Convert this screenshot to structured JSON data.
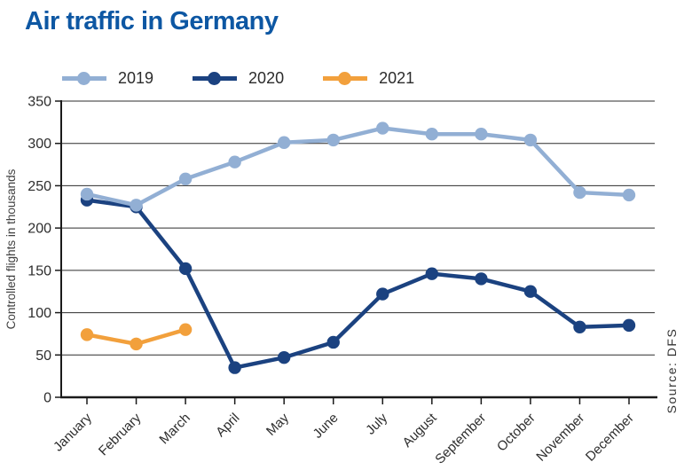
{
  "title": "Air traffic in Germany",
  "source_label": "Source: DFS",
  "colors": {
    "title": "#0D57A3",
    "axis": "#1a1a1a",
    "grid": "#2d2d2d",
    "tick_text": "#2d2d2d",
    "axis_title_text": "#404040",
    "source_text": "#333333",
    "legend_text": "#2b2b2b"
  },
  "chart_data": {
    "type": "line",
    "title": "Air traffic in Germany",
    "categories": [
      "January",
      "February",
      "March",
      "April",
      "May",
      "June",
      "July",
      "August",
      "September",
      "October",
      "November",
      "December"
    ],
    "series": [
      {
        "name": "2019",
        "color": "#92AFD4",
        "values": [
          240,
          227,
          258,
          278,
          301,
          304,
          318,
          311,
          311,
          304,
          242,
          239
        ]
      },
      {
        "name": "2020",
        "color": "#1B4280",
        "values": [
          233,
          225,
          152,
          35,
          47,
          65,
          122,
          146,
          140,
          125,
          83,
          85
        ]
      },
      {
        "name": "2021",
        "color": "#F2A03C",
        "values": [
          74,
          63,
          80
        ]
      }
    ],
    "xlabel": "",
    "ylabel": "Controlled flights in thousands",
    "ylim": [
      0,
      350
    ],
    "ytick_step": 50,
    "grid": true,
    "legend_position": "top",
    "source": "Source: DFS"
  }
}
